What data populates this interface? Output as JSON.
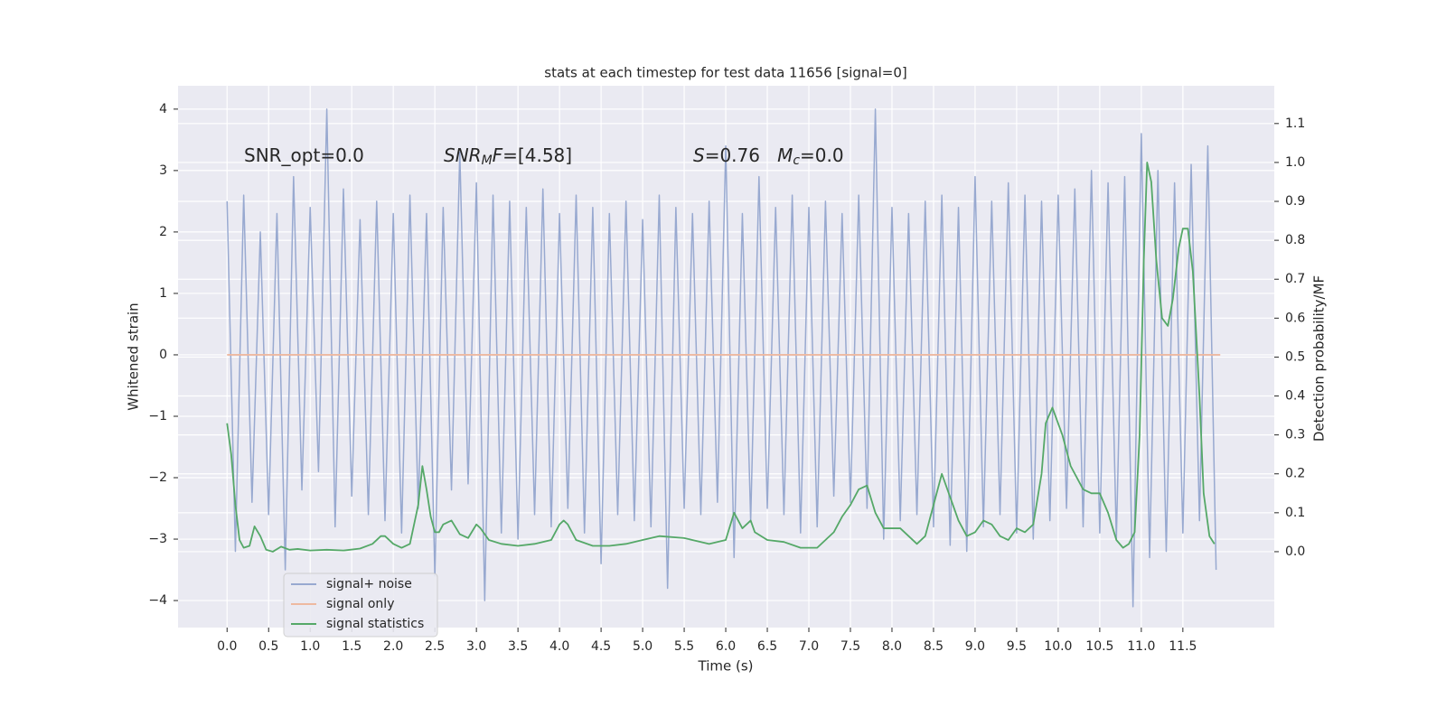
{
  "chart_data": {
    "type": "line",
    "title": "stats at each timestep for test data 11656 [signal=0]",
    "xlabel": "Time (s)",
    "ylabel": "Whitened strain",
    "y2label": "Detection probability/MF",
    "xlim": [
      -0.59,
      12.6
    ],
    "ylim": [
      -4.44,
      4.38
    ],
    "y2lim": [
      -0.195,
      1.197
    ],
    "xticks": [
      {
        "value": 0,
        "label": "0.0"
      },
      {
        "value": 0.5,
        "label": "0.5"
      },
      {
        "value": 1,
        "label": "1.0"
      },
      {
        "value": 1.5,
        "label": "1.5"
      },
      {
        "value": 2,
        "label": "2.0"
      },
      {
        "value": 2.5,
        "label": "2.5"
      },
      {
        "value": 3,
        "label": "3.0"
      },
      {
        "value": 3.5,
        "label": "3.5"
      },
      {
        "value": 4,
        "label": "4.0"
      },
      {
        "value": 4.5,
        "label": "4.5"
      },
      {
        "value": 5,
        "label": "5.0"
      },
      {
        "value": 5.5,
        "label": "5.5"
      },
      {
        "value": 6,
        "label": "6.0"
      },
      {
        "value": 6.5,
        "label": "6.5"
      },
      {
        "value": 7,
        "label": "7.0"
      },
      {
        "value": 7.5,
        "label": "7.5"
      },
      {
        "value": 8,
        "label": "8.0"
      },
      {
        "value": 8.5,
        "label": "8.5"
      },
      {
        "value": 9,
        "label": "9.0"
      },
      {
        "value": 9.5,
        "label": "9.5"
      },
      {
        "value": 10,
        "label": "10.0"
      },
      {
        "value": 10.5,
        "label": "10.5"
      },
      {
        "value": 11,
        "label": "11.0"
      },
      {
        "value": 11.5,
        "label": "11.5"
      }
    ],
    "yticks": [
      {
        "value": -4,
        "label": "−4"
      },
      {
        "value": -3,
        "label": "−3"
      },
      {
        "value": -2,
        "label": "−2"
      },
      {
        "value": -1,
        "label": "−1"
      },
      0,
      1,
      2,
      3,
      4
    ],
    "y2ticks": [
      {
        "value": 0,
        "label": "0.0"
      },
      {
        "value": 0.1,
        "label": "0.1"
      },
      {
        "value": 0.2,
        "label": "0.2"
      },
      {
        "value": 0.3,
        "label": "0.3"
      },
      {
        "value": 0.4,
        "label": "0.4"
      },
      {
        "value": 0.5,
        "label": "0.5"
      },
      {
        "value": 0.6,
        "label": "0.6"
      },
      {
        "value": 0.7,
        "label": "0.7"
      },
      {
        "value": 0.8,
        "label": "0.8"
      },
      {
        "value": 0.9,
        "label": "0.9"
      },
      {
        "value": 1.0,
        "label": "1.0"
      },
      {
        "value": 1.1,
        "label": "1.1"
      }
    ],
    "grid": true,
    "legend": "lower left",
    "annotations": [
      {
        "parts": [
          {
            "text": "SNR_opt=0.0"
          }
        ]
      },
      {
        "parts": [
          {
            "text": "SNR",
            "italic": true
          },
          {
            "text": "M",
            "italic": true,
            "sub": true
          },
          {
            "text": "F",
            "italic": true
          },
          {
            "text": "=[4.58]"
          }
        ]
      },
      {
        "parts": [
          {
            "text": "S",
            "italic": true
          },
          {
            "text": "=0.76   "
          },
          {
            "text": "M",
            "italic": true
          },
          {
            "text": "c",
            "italic": true,
            "sub": true
          },
          {
            "text": "=0.0"
          }
        ]
      }
    ],
    "series": [
      {
        "name": "signal+ noise",
        "color": "#98a9d0",
        "x": [
          0.0,
          0.1,
          0.2,
          0.3,
          0.4,
          0.5,
          0.6,
          0.7,
          0.8,
          0.9,
          1.0,
          1.1,
          1.2,
          1.3,
          1.4,
          1.5,
          1.6,
          1.7,
          1.8,
          1.9,
          2.0,
          2.1,
          2.2,
          2.3,
          2.4,
          2.5,
          2.6,
          2.7,
          2.8,
          2.9,
          3.0,
          3.1,
          3.2,
          3.3,
          3.4,
          3.5,
          3.6,
          3.7,
          3.8,
          3.9,
          4.0,
          4.1,
          4.2,
          4.3,
          4.4,
          4.5,
          4.6,
          4.7,
          4.8,
          4.9,
          5.0,
          5.1,
          5.2,
          5.3,
          5.4,
          5.5,
          5.6,
          5.7,
          5.8,
          5.9,
          6.0,
          6.1,
          6.2,
          6.3,
          6.4,
          6.5,
          6.6,
          6.7,
          6.8,
          6.9,
          7.0,
          7.1,
          7.2,
          7.3,
          7.4,
          7.5,
          7.6,
          7.7,
          7.8,
          7.9,
          8.0,
          8.1,
          8.2,
          8.3,
          8.4,
          8.5,
          8.6,
          8.7,
          8.8,
          8.9,
          9.0,
          9.1,
          9.2,
          9.3,
          9.4,
          9.5,
          9.6,
          9.7,
          9.8,
          9.9,
          10.0,
          10.1,
          10.2,
          10.3,
          10.4,
          10.5,
          10.6,
          10.7,
          10.8,
          10.9,
          11.0,
          11.1,
          11.2,
          11.3,
          11.4,
          11.5,
          11.6,
          11.7,
          11.8,
          11.9
        ],
        "values": [
          2.5,
          -3.2,
          2.6,
          -2.4,
          2.0,
          -2.6,
          2.3,
          -3.5,
          2.9,
          -2.2,
          2.4,
          -1.9,
          4.0,
          -2.8,
          2.7,
          -2.3,
          2.2,
          -2.6,
          2.5,
          -2.7,
          2.3,
          -2.9,
          2.6,
          -2.5,
          2.3,
          -3.6,
          2.4,
          -2.2,
          3.3,
          -2.1,
          2.8,
          -4.0,
          2.6,
          -2.9,
          2.5,
          -3.0,
          2.4,
          -2.6,
          2.7,
          -2.8,
          2.3,
          -2.5,
          2.6,
          -2.9,
          2.4,
          -3.4,
          2.3,
          -2.6,
          2.5,
          -2.7,
          2.2,
          -2.8,
          2.6,
          -3.8,
          2.4,
          -2.5,
          2.3,
          -2.6,
          2.5,
          -2.4,
          3.4,
          -3.3,
          2.3,
          -2.7,
          2.9,
          -2.5,
          2.4,
          -2.6,
          2.6,
          -2.9,
          2.4,
          -2.8,
          2.5,
          -2.3,
          2.3,
          -2.4,
          2.6,
          -2.5,
          4.0,
          -3.0,
          2.4,
          -2.7,
          2.3,
          -2.6,
          2.5,
          -2.8,
          2.6,
          -3.1,
          2.4,
          -3.2,
          2.9,
          -2.8,
          2.5,
          -2.6,
          2.8,
          -2.9,
          2.6,
          -3.0,
          2.5,
          -2.7,
          2.6,
          -2.5,
          2.7,
          -2.8,
          3.0,
          -2.9,
          2.8,
          -3.0,
          2.9,
          -4.1,
          3.6,
          -3.3,
          3.0,
          -3.2,
          2.8,
          -2.9,
          3.1,
          -2.7,
          3.4,
          -3.5
        ]
      },
      {
        "name": "signal only",
        "color": "#eeb9a0",
        "x": [
          0.0,
          11.95
        ],
        "values": [
          0,
          0
        ]
      },
      {
        "name": "signal statistics",
        "color": "#55a868",
        "axis": "y2",
        "x": [
          0.0,
          0.05,
          0.1,
          0.15,
          0.2,
          0.27,
          0.33,
          0.4,
          0.47,
          0.55,
          0.65,
          0.75,
          0.85,
          1.0,
          1.2,
          1.4,
          1.6,
          1.75,
          1.85,
          1.9,
          2.0,
          2.1,
          2.2,
          2.3,
          2.35,
          2.4,
          2.45,
          2.5,
          2.55,
          2.6,
          2.7,
          2.8,
          2.9,
          3.0,
          3.05,
          3.15,
          3.3,
          3.5,
          3.7,
          3.9,
          4.0,
          4.05,
          4.1,
          4.2,
          4.4,
          4.6,
          4.8,
          5.0,
          5.2,
          5.5,
          5.8,
          6.0,
          6.1,
          6.2,
          6.3,
          6.35,
          6.5,
          6.7,
          6.9,
          7.1,
          7.3,
          7.4,
          7.5,
          7.6,
          7.7,
          7.8,
          7.9,
          8.1,
          8.3,
          8.4,
          8.5,
          8.6,
          8.7,
          8.8,
          8.9,
          9.0,
          9.1,
          9.2,
          9.3,
          9.4,
          9.5,
          9.6,
          9.7,
          9.8,
          9.85,
          9.93,
          10.05,
          10.15,
          10.3,
          10.4,
          10.5,
          10.6,
          10.7,
          10.78,
          10.85,
          10.92,
          10.98,
          11.03,
          11.07,
          11.12,
          11.18,
          11.25,
          11.32,
          11.38,
          11.45,
          11.5,
          11.56,
          11.62,
          11.7,
          11.75,
          11.82,
          11.88
        ],
        "values": [
          0.33,
          0.25,
          0.12,
          0.03,
          0.01,
          0.015,
          0.065,
          0.04,
          0.005,
          0.0,
          0.013,
          0.005,
          0.007,
          0.003,
          0.005,
          0.003,
          0.008,
          0.02,
          0.04,
          0.04,
          0.02,
          0.01,
          0.02,
          0.12,
          0.22,
          0.16,
          0.09,
          0.05,
          0.05,
          0.07,
          0.08,
          0.045,
          0.035,
          0.07,
          0.06,
          0.03,
          0.02,
          0.015,
          0.02,
          0.03,
          0.07,
          0.08,
          0.07,
          0.03,
          0.015,
          0.015,
          0.02,
          0.03,
          0.04,
          0.035,
          0.02,
          0.03,
          0.1,
          0.06,
          0.08,
          0.05,
          0.03,
          0.025,
          0.01,
          0.01,
          0.05,
          0.09,
          0.12,
          0.16,
          0.17,
          0.1,
          0.06,
          0.06,
          0.02,
          0.04,
          0.12,
          0.2,
          0.14,
          0.08,
          0.04,
          0.05,
          0.08,
          0.07,
          0.04,
          0.03,
          0.06,
          0.05,
          0.07,
          0.2,
          0.33,
          0.37,
          0.3,
          0.22,
          0.16,
          0.15,
          0.15,
          0.1,
          0.03,
          0.01,
          0.02,
          0.05,
          0.3,
          0.75,
          1.0,
          0.95,
          0.75,
          0.6,
          0.58,
          0.65,
          0.78,
          0.83,
          0.83,
          0.72,
          0.4,
          0.15,
          0.04,
          0.02
        ]
      }
    ]
  }
}
